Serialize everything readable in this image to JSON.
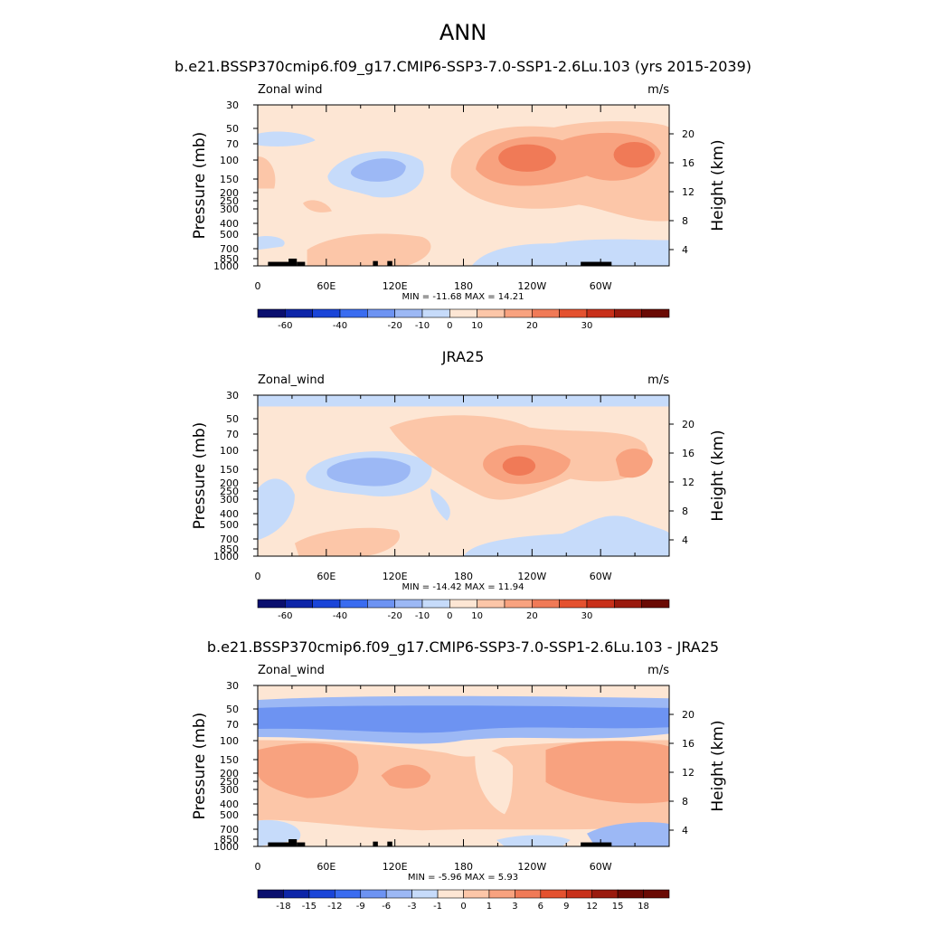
{
  "figure": {
    "title": "ANN"
  },
  "chart_data": [
    {
      "type": "heatmap",
      "title": "b.e21.BSSP370cmip6.f09_g17.CMIP6-SSP3-7.0-SSP1-2.6Lu.103 (yrs 2015-2039)",
      "variable": "Zonal wind",
      "units": "m/s",
      "xlabel": "",
      "ylabel": "Pressure (mb)",
      "ylabel_right": "Height (km)",
      "x_ticks": [
        "0",
        "60E",
        "120E",
        "180",
        "120W",
        "60W"
      ],
      "y_ticks": [
        "30",
        "50",
        "70",
        "100",
        "150",
        "200",
        "250",
        "300",
        "400",
        "500",
        "700",
        "850",
        "1000"
      ],
      "height_ticks": [
        "20",
        "16",
        "12",
        "8",
        "4"
      ],
      "min_max_text": "MIN = -11.68  MAX =  14.21",
      "min": -11.68,
      "max": 14.21,
      "colorbar_labels": [
        "-60",
        "-40",
        "-20",
        "-10",
        "0",
        "10",
        "20",
        "30"
      ],
      "colors": [
        "#0a0f6e",
        "#0d25a8",
        "#1a45d8",
        "#3a6cf0",
        "#6d93f2",
        "#9cb8f5",
        "#c6dbfa",
        "#fde6d4",
        "#fcc6a8",
        "#f8a27f",
        "#f07a57",
        "#e4512f",
        "#c8301a",
        "#9a1a0e",
        "#6a0a04"
      ]
    },
    {
      "type": "heatmap",
      "title": "JRA25",
      "variable": "Zonal_wind",
      "units": "m/s",
      "xlabel": "",
      "ylabel": "Pressure (mb)",
      "ylabel_right": "Height (km)",
      "x_ticks": [
        "0",
        "60E",
        "120E",
        "180",
        "120W",
        "60W"
      ],
      "y_ticks": [
        "30",
        "50",
        "70",
        "100",
        "150",
        "200",
        "250",
        "300",
        "400",
        "500",
        "700",
        "850",
        "1000"
      ],
      "height_ticks": [
        "20",
        "16",
        "12",
        "8",
        "4"
      ],
      "min_max_text": "MIN = -14.42  MAX =  11.94",
      "min": -14.42,
      "max": 11.94,
      "colorbar_labels": [
        "-60",
        "-40",
        "-20",
        "-10",
        "0",
        "10",
        "20",
        "30"
      ],
      "colors": [
        "#0a0f6e",
        "#0d25a8",
        "#1a45d8",
        "#3a6cf0",
        "#6d93f2",
        "#9cb8f5",
        "#c6dbfa",
        "#fde6d4",
        "#fcc6a8",
        "#f8a27f",
        "#f07a57",
        "#e4512f",
        "#c8301a",
        "#9a1a0e",
        "#6a0a04"
      ]
    },
    {
      "type": "heatmap",
      "title": "b.e21.BSSP370cmip6.f09_g17.CMIP6-SSP3-7.0-SSP1-2.6Lu.103 - JRA25",
      "variable": "Zonal_wind",
      "units": "m/s",
      "xlabel": "",
      "ylabel": "Pressure (mb)",
      "ylabel_right": "Height (km)",
      "x_ticks": [
        "0",
        "60E",
        "120E",
        "180",
        "120W",
        "60W"
      ],
      "y_ticks": [
        "30",
        "50",
        "70",
        "100",
        "150",
        "200",
        "250",
        "300",
        "400",
        "500",
        "700",
        "850",
        "1000"
      ],
      "height_ticks": [
        "20",
        "16",
        "12",
        "8",
        "4"
      ],
      "min_max_text": "MIN =  -5.96  MAX =   5.93",
      "min": -5.96,
      "max": 5.93,
      "colorbar_labels": [
        "-18",
        "-15",
        "-12",
        "-9",
        "-6",
        "-3",
        "-1",
        "0",
        "1",
        "3",
        "6",
        "9",
        "12",
        "15",
        "18"
      ],
      "colors": [
        "#0a0f6e",
        "#0d25a8",
        "#1a45d8",
        "#3a6cf0",
        "#6d93f2",
        "#9cb8f5",
        "#c6dbfa",
        "#fde6d4",
        "#fcc6a8",
        "#f8a27f",
        "#f07a57",
        "#e4512f",
        "#c8301a",
        "#9a1a0e",
        "#6a0a04",
        "#6a0a04"
      ]
    }
  ]
}
